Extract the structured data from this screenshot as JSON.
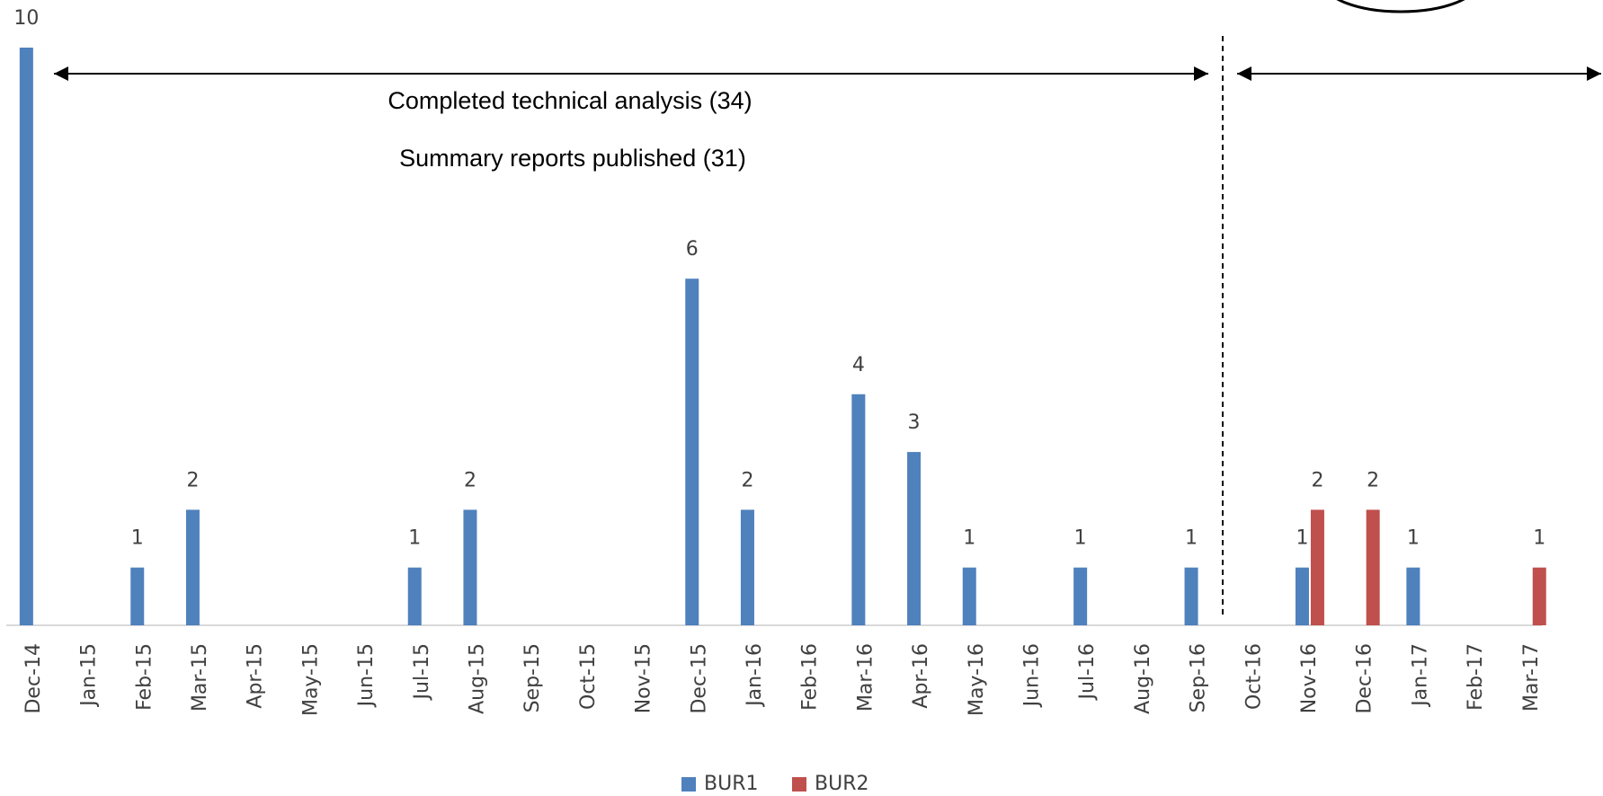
{
  "chart_data": {
    "type": "bar",
    "categories": [
      "Dec-14",
      "Jan-15",
      "Feb-15",
      "Mar-15",
      "Apr-15",
      "May-15",
      "Jun-15",
      "Jul-15",
      "Aug-15",
      "Sep-15",
      "Oct-15",
      "Nov-15",
      "Dec-15",
      "Jan-16",
      "Feb-16",
      "Mar-16",
      "Apr-16",
      "May-16",
      "Jun-16",
      "Jul-16",
      "Aug-16",
      "Sep-16",
      "Oct-16",
      "Nov-16",
      "Dec-16",
      "Jan-17",
      "Feb-17",
      "Mar-17"
    ],
    "series": [
      {
        "name": "BUR1",
        "color": "#4f81bd",
        "values": [
          10,
          null,
          1,
          2,
          null,
          null,
          null,
          1,
          2,
          null,
          null,
          null,
          6,
          2,
          null,
          4,
          3,
          1,
          null,
          1,
          null,
          1,
          null,
          1,
          null,
          1,
          null,
          null
        ]
      },
      {
        "name": "BUR2",
        "color": "#c0504d",
        "values": [
          null,
          null,
          null,
          null,
          null,
          null,
          null,
          null,
          null,
          null,
          null,
          null,
          null,
          null,
          null,
          null,
          null,
          null,
          null,
          null,
          null,
          null,
          null,
          2,
          2,
          null,
          null,
          1
        ]
      }
    ],
    "annotations": [
      "Completed technical analysis (34)",
      "Summary reports published (31)"
    ],
    "ylim": [
      0,
      10
    ],
    "legend": "bottom"
  }
}
